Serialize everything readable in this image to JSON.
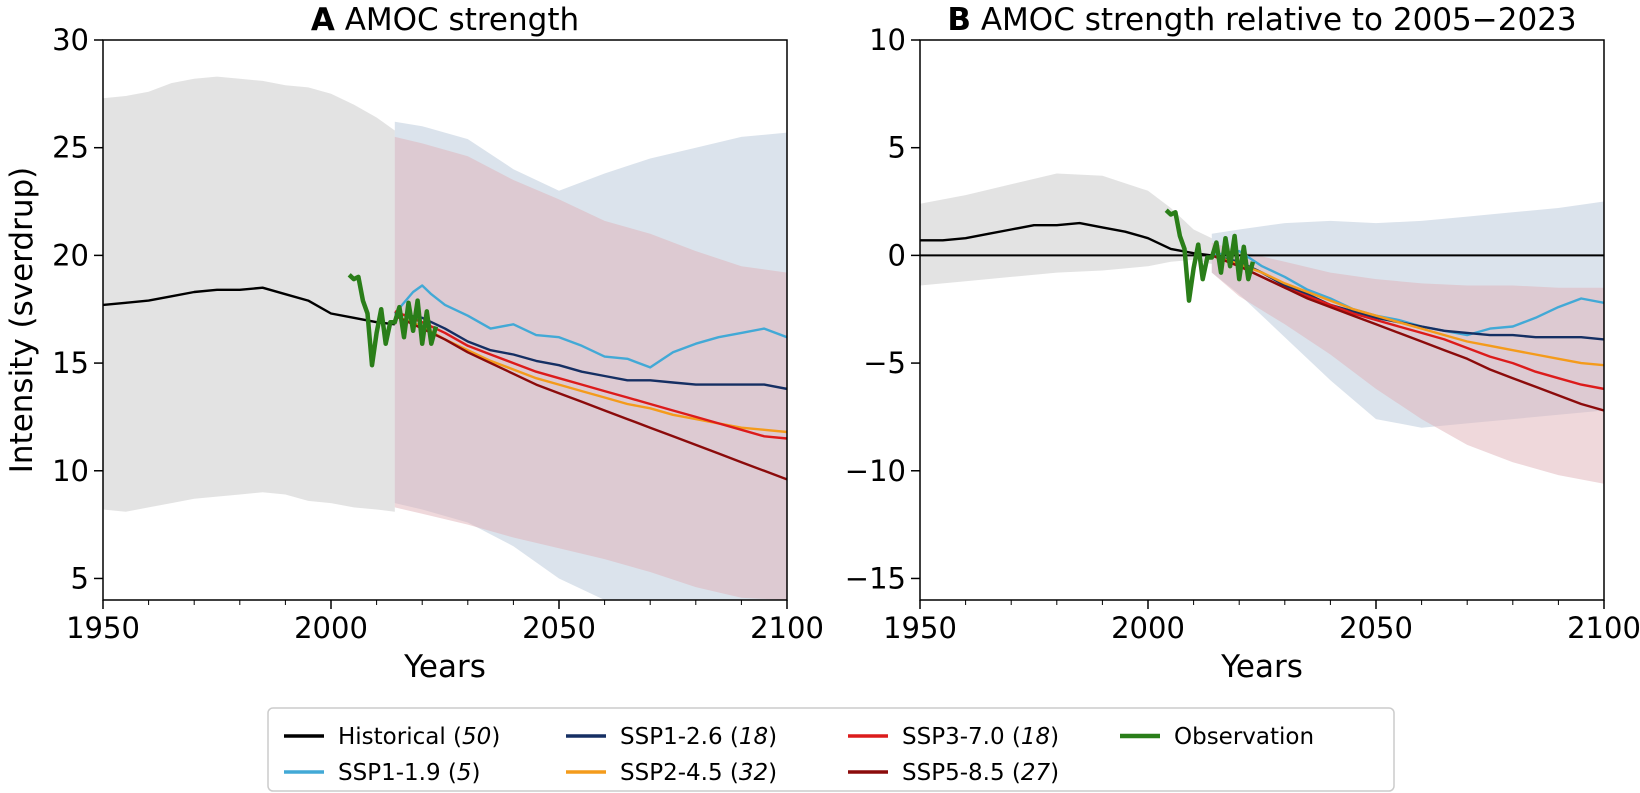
{
  "chart_data": [
    {
      "type": "line",
      "panel_letter": "A",
      "title": "AMOC strength",
      "xlabel": "Years",
      "ylabel": "Intensity (sverdrup)",
      "xlim": [
        1950,
        2100
      ],
      "ylim": [
        4,
        30
      ],
      "xticks": [
        "1950",
        "2000",
        "2050",
        "2100"
      ],
      "yticks": [
        "5",
        "10",
        "15",
        "20",
        "25",
        "30"
      ],
      "shaded_ranges": [
        {
          "name": "Historical (50)",
          "color": "#c8c8c8",
          "x": [
            1950,
            1955,
            1960,
            1965,
            1970,
            1975,
            1980,
            1985,
            1990,
            1995,
            2000,
            2005,
            2010,
            2014
          ],
          "upper": [
            27.3,
            27.4,
            27.6,
            28.0,
            28.2,
            28.3,
            28.2,
            28.1,
            27.9,
            27.8,
            27.5,
            27.0,
            26.4,
            25.8
          ],
          "lower": [
            8.2,
            8.1,
            8.3,
            8.5,
            8.7,
            8.8,
            8.9,
            9.0,
            8.9,
            8.6,
            8.5,
            8.3,
            8.2,
            8.1
          ]
        },
        {
          "name": "SSP1-2.6 (18)",
          "color": "#b7c8da",
          "x": [
            2014,
            2020,
            2030,
            2040,
            2050,
            2060,
            2070,
            2080,
            2090,
            2100
          ],
          "upper": [
            26.2,
            26.0,
            25.4,
            24.0,
            23.0,
            23.8,
            24.5,
            25.0,
            25.5,
            25.7
          ],
          "lower": [
            8.5,
            8.2,
            7.6,
            6.5,
            5.0,
            4.0,
            4.0,
            4.0,
            4.0,
            4.0
          ]
        },
        {
          "name": "SSP5-8.5 (27)",
          "color": "#e0b2b8",
          "x": [
            2014,
            2020,
            2030,
            2040,
            2050,
            2060,
            2070,
            2080,
            2090,
            2100
          ],
          "upper": [
            25.5,
            25.2,
            24.6,
            23.5,
            22.6,
            21.6,
            21.0,
            20.2,
            19.5,
            19.2
          ],
          "lower": [
            8.3,
            8.0,
            7.5,
            6.9,
            6.4,
            5.9,
            5.3,
            4.6,
            4.1,
            4.0
          ]
        }
      ],
      "series": [
        {
          "name": "Historical (50)",
          "color": "#000000",
          "x": [
            1950,
            1955,
            1960,
            1965,
            1970,
            1975,
            1980,
            1985,
            1990,
            1995,
            2000,
            2005,
            2010,
            2014
          ],
          "y": [
            17.7,
            17.8,
            17.9,
            18.1,
            18.3,
            18.4,
            18.4,
            18.5,
            18.2,
            17.9,
            17.3,
            17.1,
            16.9,
            16.8
          ]
        },
        {
          "name": "SSP1-1.9 (5)",
          "color": "#42a9d6",
          "x": [
            2014,
            2018,
            2020,
            2022,
            2025,
            2030,
            2035,
            2040,
            2045,
            2050,
            2055,
            2060,
            2065,
            2070,
            2075,
            2080,
            2085,
            2090,
            2095,
            2100
          ],
          "y": [
            17.3,
            18.3,
            18.6,
            18.2,
            17.7,
            17.2,
            16.6,
            16.8,
            16.3,
            16.2,
            15.8,
            15.3,
            15.2,
            14.8,
            15.5,
            15.9,
            16.2,
            16.4,
            16.6,
            16.2
          ]
        },
        {
          "name": "SSP1-2.6 (18)",
          "color": "#152f63",
          "x": [
            2014,
            2020,
            2025,
            2030,
            2035,
            2040,
            2045,
            2050,
            2055,
            2060,
            2065,
            2070,
            2075,
            2080,
            2085,
            2090,
            2095,
            2100
          ],
          "y": [
            17.3,
            17.1,
            16.6,
            16.0,
            15.6,
            15.4,
            15.1,
            14.9,
            14.6,
            14.4,
            14.2,
            14.2,
            14.1,
            14.0,
            14.0,
            14.0,
            14.0,
            13.8
          ]
        },
        {
          "name": "SSP2-4.5 (32)",
          "color": "#f49b1b",
          "x": [
            2014,
            2020,
            2025,
            2030,
            2035,
            2040,
            2045,
            2050,
            2055,
            2060,
            2065,
            2070,
            2075,
            2080,
            2085,
            2090,
            2095,
            2100
          ],
          "y": [
            17.2,
            16.7,
            16.1,
            15.6,
            15.1,
            14.7,
            14.3,
            14.0,
            13.7,
            13.4,
            13.1,
            12.9,
            12.6,
            12.4,
            12.2,
            12.0,
            11.9,
            11.8
          ]
        },
        {
          "name": "SSP3-7.0 (18)",
          "color": "#dc1b1b",
          "x": [
            2014,
            2020,
            2025,
            2030,
            2035,
            2040,
            2045,
            2050,
            2055,
            2060,
            2065,
            2070,
            2075,
            2080,
            2085,
            2090,
            2095,
            2100
          ],
          "y": [
            17.4,
            16.9,
            16.4,
            15.8,
            15.4,
            15.0,
            14.6,
            14.3,
            14.0,
            13.7,
            13.4,
            13.1,
            12.8,
            12.5,
            12.2,
            11.9,
            11.6,
            11.5
          ]
        },
        {
          "name": "SSP5-8.5 (27)",
          "color": "#8b0b0b",
          "x": [
            2014,
            2020,
            2025,
            2030,
            2035,
            2040,
            2045,
            2050,
            2055,
            2060,
            2065,
            2070,
            2075,
            2080,
            2085,
            2090,
            2095,
            2100
          ],
          "y": [
            17.2,
            16.6,
            16.1,
            15.5,
            15.0,
            14.5,
            14.0,
            13.6,
            13.2,
            12.8,
            12.4,
            12.0,
            11.6,
            11.2,
            10.8,
            10.4,
            10.0,
            9.6
          ]
        },
        {
          "name": "Observation",
          "color": "#2a7e19",
          "x": [
            2004,
            2005,
            2006,
            2007,
            2008,
            2009,
            2010,
            2011,
            2012,
            2013,
            2014,
            2015,
            2016,
            2017,
            2018,
            2019,
            2020,
            2021,
            2022,
            2023
          ],
          "y": [
            19.1,
            18.9,
            19.0,
            17.9,
            17.3,
            14.9,
            16.4,
            17.5,
            15.9,
            16.9,
            16.9,
            17.6,
            16.2,
            17.8,
            16.5,
            17.9,
            15.9,
            17.4,
            15.9,
            16.7
          ]
        }
      ]
    },
    {
      "type": "line",
      "panel_letter": "B",
      "title": "AMOC strength relative to 2005−2023",
      "xlabel": "Years",
      "ylabel": "",
      "xlim": [
        1950,
        2100
      ],
      "ylim": [
        -16,
        10
      ],
      "xticks": [
        "1950",
        "2000",
        "2050",
        "2100"
      ],
      "yticks": [
        "−15",
        "−10",
        "−5",
        "0",
        "5",
        "10"
      ],
      "reference_line": 0,
      "shaded_ranges": [
        {
          "name": "Historical (50)",
          "color": "#c8c8c8",
          "x": [
            1950,
            1960,
            1970,
            1980,
            1990,
            2000,
            2005,
            2010,
            2014
          ],
          "upper": [
            2.4,
            2.8,
            3.3,
            3.8,
            3.7,
            3.0,
            2.2,
            1.2,
            0.8
          ],
          "lower": [
            -1.4,
            -1.2,
            -1.0,
            -0.8,
            -0.7,
            -0.5,
            -0.3,
            -0.2,
            -0.4
          ]
        },
        {
          "name": "SSP1-2.6 (18)",
          "color": "#b7c8da",
          "x": [
            2014,
            2020,
            2030,
            2040,
            2050,
            2060,
            2070,
            2080,
            2090,
            2100
          ],
          "upper": [
            1.0,
            1.2,
            1.5,
            1.6,
            1.5,
            1.6,
            1.8,
            2.0,
            2.2,
            2.5
          ],
          "lower": [
            -0.8,
            -1.8,
            -3.8,
            -5.8,
            -7.6,
            -8.0,
            -7.8,
            -7.6,
            -7.4,
            -7.2
          ]
        },
        {
          "name": "SSP5-8.5 (27)",
          "color": "#e0b2b8",
          "x": [
            2014,
            2020,
            2030,
            2040,
            2050,
            2060,
            2070,
            2080,
            2090,
            2100
          ],
          "upper": [
            0.6,
            0.2,
            -0.3,
            -0.8,
            -1.1,
            -1.3,
            -1.4,
            -1.4,
            -1.5,
            -1.5
          ],
          "lower": [
            -0.8,
            -1.9,
            -3.2,
            -4.6,
            -6.2,
            -7.6,
            -8.8,
            -9.6,
            -10.2,
            -10.6
          ]
        }
      ],
      "series": [
        {
          "name": "Historical (50)",
          "color": "#000000",
          "x": [
            1950,
            1955,
            1960,
            1965,
            1970,
            1975,
            1980,
            1985,
            1990,
            1995,
            2000,
            2005,
            2010,
            2014
          ],
          "y": [
            0.7,
            0.7,
            0.8,
            1.0,
            1.2,
            1.4,
            1.4,
            1.5,
            1.3,
            1.1,
            0.8,
            0.3,
            0.1,
            0.0
          ]
        },
        {
          "name": "SSP1-1.9 (5)",
          "color": "#42a9d6",
          "x": [
            2014,
            2020,
            2025,
            2030,
            2035,
            2040,
            2045,
            2050,
            2055,
            2060,
            2065,
            2070,
            2075,
            2080,
            2085,
            2090,
            2095,
            2100
          ],
          "y": [
            0.0,
            0.2,
            -0.5,
            -1.0,
            -1.6,
            -2.0,
            -2.5,
            -2.8,
            -3.0,
            -3.3,
            -3.5,
            -3.7,
            -3.4,
            -3.3,
            -2.9,
            -2.4,
            -2.0,
            -2.2
          ]
        },
        {
          "name": "SSP1-2.6 (18)",
          "color": "#152f63",
          "x": [
            2014,
            2020,
            2025,
            2030,
            2035,
            2040,
            2045,
            2050,
            2055,
            2060,
            2065,
            2070,
            2075,
            2080,
            2085,
            2090,
            2095,
            2100
          ],
          "y": [
            0.0,
            -0.3,
            -0.8,
            -1.4,
            -1.8,
            -2.3,
            -2.6,
            -2.9,
            -3.1,
            -3.3,
            -3.5,
            -3.6,
            -3.7,
            -3.7,
            -3.8,
            -3.8,
            -3.8,
            -3.9
          ]
        },
        {
          "name": "SSP2-4.5 (32)",
          "color": "#f49b1b",
          "x": [
            2014,
            2020,
            2025,
            2030,
            2035,
            2040,
            2045,
            2050,
            2055,
            2060,
            2065,
            2070,
            2075,
            2080,
            2085,
            2090,
            2095,
            2100
          ],
          "y": [
            0.0,
            -0.4,
            -0.8,
            -1.3,
            -1.7,
            -2.1,
            -2.5,
            -2.8,
            -3.1,
            -3.4,
            -3.7,
            -4.0,
            -4.2,
            -4.4,
            -4.6,
            -4.8,
            -5.0,
            -5.1
          ]
        },
        {
          "name": "SSP3-7.0 (18)",
          "color": "#dc1b1b",
          "x": [
            2014,
            2020,
            2025,
            2030,
            2035,
            2040,
            2045,
            2050,
            2055,
            2060,
            2065,
            2070,
            2075,
            2080,
            2085,
            2090,
            2095,
            2100
          ],
          "y": [
            0.0,
            -0.5,
            -1.0,
            -1.5,
            -1.9,
            -2.3,
            -2.7,
            -3.0,
            -3.3,
            -3.6,
            -3.9,
            -4.3,
            -4.7,
            -5.0,
            -5.4,
            -5.7,
            -6.0,
            -6.2
          ]
        },
        {
          "name": "SSP5-8.5 (27)",
          "color": "#8b0b0b",
          "x": [
            2014,
            2020,
            2025,
            2030,
            2035,
            2040,
            2045,
            2050,
            2055,
            2060,
            2065,
            2070,
            2075,
            2080,
            2085,
            2090,
            2095,
            2100
          ],
          "y": [
            0.0,
            -0.5,
            -1.0,
            -1.5,
            -2.0,
            -2.4,
            -2.8,
            -3.2,
            -3.6,
            -4.0,
            -4.4,
            -4.8,
            -5.3,
            -5.7,
            -6.1,
            -6.5,
            -6.9,
            -7.2
          ]
        },
        {
          "name": "Observation",
          "color": "#2a7e19",
          "x": [
            2004,
            2005,
            2006,
            2007,
            2008,
            2009,
            2010,
            2011,
            2012,
            2013,
            2014,
            2015,
            2016,
            2017,
            2018,
            2019,
            2020,
            2021,
            2022,
            2023
          ],
          "y": [
            2.1,
            1.9,
            2.0,
            0.9,
            0.3,
            -2.1,
            -0.6,
            0.5,
            -1.1,
            -0.1,
            -0.1,
            0.6,
            -0.8,
            0.8,
            -0.5,
            0.9,
            -1.1,
            0.4,
            -1.1,
            -0.3
          ]
        }
      ]
    }
  ],
  "legend": {
    "entries": [
      {
        "name": "Historical",
        "count": "50",
        "color": "#000000"
      },
      {
        "name": "SSP1-1.9",
        "count": "5",
        "color": "#42a9d6"
      },
      {
        "name": "SSP1-2.6",
        "count": "18",
        "color": "#152f63"
      },
      {
        "name": "SSP2-4.5",
        "count": "32",
        "color": "#f49b1b"
      },
      {
        "name": "SSP3-7.0",
        "count": "18",
        "color": "#dc1b1b"
      },
      {
        "name": "SSP5-8.5",
        "count": "27",
        "color": "#8b0b0b"
      },
      {
        "name": "Observation",
        "count": "",
        "color": "#2a7e19"
      }
    ],
    "placement": "bottom-center"
  }
}
